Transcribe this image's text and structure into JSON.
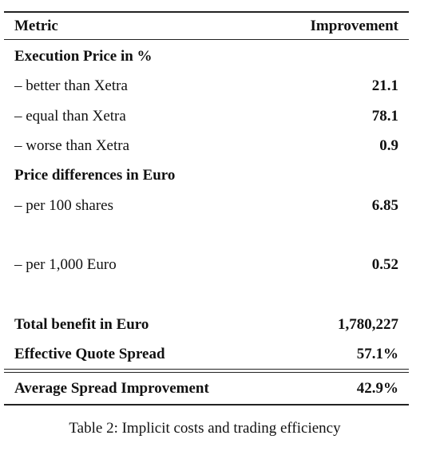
{
  "table": {
    "header": [
      "Metric",
      "Improvement"
    ],
    "rows": [
      {
        "label": "Execution Price in %"
      },
      {
        "label": "– better than Xetra",
        "value": "21.1"
      },
      {
        "label": "– equal than Xetra",
        "value": "78.1"
      },
      {
        "label": "– worse than Xetra",
        "value": "0.9"
      },
      {
        "label": "Price differences in Euro"
      },
      {
        "label": "– per 100 shares",
        "value": "6.85"
      },
      {
        "label": "– per 1,000 Euro",
        "value": "0.52"
      },
      {
        "label": "Total benefit in Euro",
        "value": "1,780,227"
      },
      {
        "label": "Effective Quote Spread",
        "value": "57.1%"
      },
      {
        "label": "Average Spread Improvement",
        "value": "42.9%"
      }
    ],
    "caption": "Table 2: Implicit costs and trading efficiency"
  }
}
